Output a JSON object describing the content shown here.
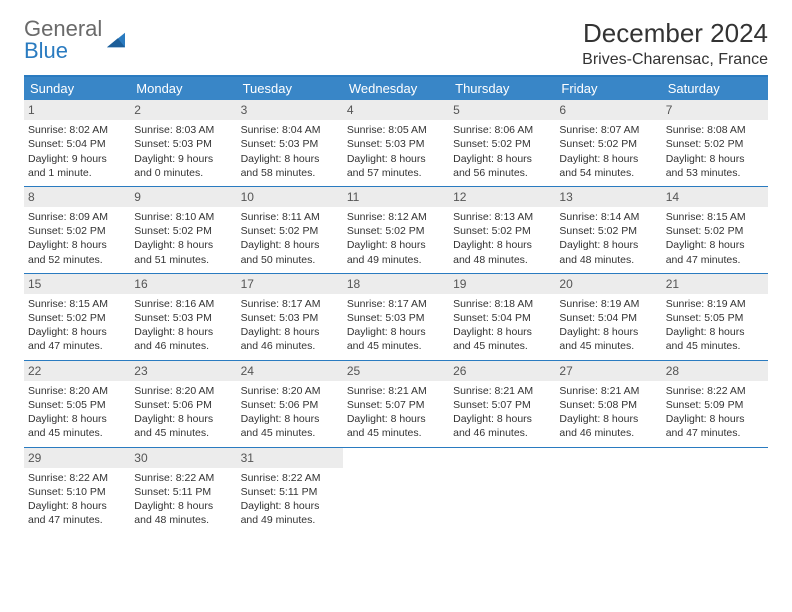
{
  "brand": {
    "general": "General",
    "blue": "Blue"
  },
  "title": "December 2024",
  "location": "Brives-Charensac, France",
  "day_names": [
    "Sunday",
    "Monday",
    "Tuesday",
    "Wednesday",
    "Thursday",
    "Friday",
    "Saturday"
  ],
  "colors": {
    "header_bar": "#3986c7",
    "rule": "#2a7bc0",
    "daynum_bg": "#ececec",
    "text": "#333333",
    "logo_gray": "#6a6a6a",
    "logo_blue": "#2a7bc0"
  },
  "weeks": [
    [
      {
        "n": "1",
        "sr": "Sunrise: 8:02 AM",
        "ss": "Sunset: 5:04 PM",
        "d1": "Daylight: 9 hours",
        "d2": "and 1 minute."
      },
      {
        "n": "2",
        "sr": "Sunrise: 8:03 AM",
        "ss": "Sunset: 5:03 PM",
        "d1": "Daylight: 9 hours",
        "d2": "and 0 minutes."
      },
      {
        "n": "3",
        "sr": "Sunrise: 8:04 AM",
        "ss": "Sunset: 5:03 PM",
        "d1": "Daylight: 8 hours",
        "d2": "and 58 minutes."
      },
      {
        "n": "4",
        "sr": "Sunrise: 8:05 AM",
        "ss": "Sunset: 5:03 PM",
        "d1": "Daylight: 8 hours",
        "d2": "and 57 minutes."
      },
      {
        "n": "5",
        "sr": "Sunrise: 8:06 AM",
        "ss": "Sunset: 5:02 PM",
        "d1": "Daylight: 8 hours",
        "d2": "and 56 minutes."
      },
      {
        "n": "6",
        "sr": "Sunrise: 8:07 AM",
        "ss": "Sunset: 5:02 PM",
        "d1": "Daylight: 8 hours",
        "d2": "and 54 minutes."
      },
      {
        "n": "7",
        "sr": "Sunrise: 8:08 AM",
        "ss": "Sunset: 5:02 PM",
        "d1": "Daylight: 8 hours",
        "d2": "and 53 minutes."
      }
    ],
    [
      {
        "n": "8",
        "sr": "Sunrise: 8:09 AM",
        "ss": "Sunset: 5:02 PM",
        "d1": "Daylight: 8 hours",
        "d2": "and 52 minutes."
      },
      {
        "n": "9",
        "sr": "Sunrise: 8:10 AM",
        "ss": "Sunset: 5:02 PM",
        "d1": "Daylight: 8 hours",
        "d2": "and 51 minutes."
      },
      {
        "n": "10",
        "sr": "Sunrise: 8:11 AM",
        "ss": "Sunset: 5:02 PM",
        "d1": "Daylight: 8 hours",
        "d2": "and 50 minutes."
      },
      {
        "n": "11",
        "sr": "Sunrise: 8:12 AM",
        "ss": "Sunset: 5:02 PM",
        "d1": "Daylight: 8 hours",
        "d2": "and 49 minutes."
      },
      {
        "n": "12",
        "sr": "Sunrise: 8:13 AM",
        "ss": "Sunset: 5:02 PM",
        "d1": "Daylight: 8 hours",
        "d2": "and 48 minutes."
      },
      {
        "n": "13",
        "sr": "Sunrise: 8:14 AM",
        "ss": "Sunset: 5:02 PM",
        "d1": "Daylight: 8 hours",
        "d2": "and 48 minutes."
      },
      {
        "n": "14",
        "sr": "Sunrise: 8:15 AM",
        "ss": "Sunset: 5:02 PM",
        "d1": "Daylight: 8 hours",
        "d2": "and 47 minutes."
      }
    ],
    [
      {
        "n": "15",
        "sr": "Sunrise: 8:15 AM",
        "ss": "Sunset: 5:02 PM",
        "d1": "Daylight: 8 hours",
        "d2": "and 47 minutes."
      },
      {
        "n": "16",
        "sr": "Sunrise: 8:16 AM",
        "ss": "Sunset: 5:03 PM",
        "d1": "Daylight: 8 hours",
        "d2": "and 46 minutes."
      },
      {
        "n": "17",
        "sr": "Sunrise: 8:17 AM",
        "ss": "Sunset: 5:03 PM",
        "d1": "Daylight: 8 hours",
        "d2": "and 46 minutes."
      },
      {
        "n": "18",
        "sr": "Sunrise: 8:17 AM",
        "ss": "Sunset: 5:03 PM",
        "d1": "Daylight: 8 hours",
        "d2": "and 45 minutes."
      },
      {
        "n": "19",
        "sr": "Sunrise: 8:18 AM",
        "ss": "Sunset: 5:04 PM",
        "d1": "Daylight: 8 hours",
        "d2": "and 45 minutes."
      },
      {
        "n": "20",
        "sr": "Sunrise: 8:19 AM",
        "ss": "Sunset: 5:04 PM",
        "d1": "Daylight: 8 hours",
        "d2": "and 45 minutes."
      },
      {
        "n": "21",
        "sr": "Sunrise: 8:19 AM",
        "ss": "Sunset: 5:05 PM",
        "d1": "Daylight: 8 hours",
        "d2": "and 45 minutes."
      }
    ],
    [
      {
        "n": "22",
        "sr": "Sunrise: 8:20 AM",
        "ss": "Sunset: 5:05 PM",
        "d1": "Daylight: 8 hours",
        "d2": "and 45 minutes."
      },
      {
        "n": "23",
        "sr": "Sunrise: 8:20 AM",
        "ss": "Sunset: 5:06 PM",
        "d1": "Daylight: 8 hours",
        "d2": "and 45 minutes."
      },
      {
        "n": "24",
        "sr": "Sunrise: 8:20 AM",
        "ss": "Sunset: 5:06 PM",
        "d1": "Daylight: 8 hours",
        "d2": "and 45 minutes."
      },
      {
        "n": "25",
        "sr": "Sunrise: 8:21 AM",
        "ss": "Sunset: 5:07 PM",
        "d1": "Daylight: 8 hours",
        "d2": "and 45 minutes."
      },
      {
        "n": "26",
        "sr": "Sunrise: 8:21 AM",
        "ss": "Sunset: 5:07 PM",
        "d1": "Daylight: 8 hours",
        "d2": "and 46 minutes."
      },
      {
        "n": "27",
        "sr": "Sunrise: 8:21 AM",
        "ss": "Sunset: 5:08 PM",
        "d1": "Daylight: 8 hours",
        "d2": "and 46 minutes."
      },
      {
        "n": "28",
        "sr": "Sunrise: 8:22 AM",
        "ss": "Sunset: 5:09 PM",
        "d1": "Daylight: 8 hours",
        "d2": "and 47 minutes."
      }
    ],
    [
      {
        "n": "29",
        "sr": "Sunrise: 8:22 AM",
        "ss": "Sunset: 5:10 PM",
        "d1": "Daylight: 8 hours",
        "d2": "and 47 minutes."
      },
      {
        "n": "30",
        "sr": "Sunrise: 8:22 AM",
        "ss": "Sunset: 5:11 PM",
        "d1": "Daylight: 8 hours",
        "d2": "and 48 minutes."
      },
      {
        "n": "31",
        "sr": "Sunrise: 8:22 AM",
        "ss": "Sunset: 5:11 PM",
        "d1": "Daylight: 8 hours",
        "d2": "and 49 minutes."
      },
      null,
      null,
      null,
      null
    ]
  ]
}
